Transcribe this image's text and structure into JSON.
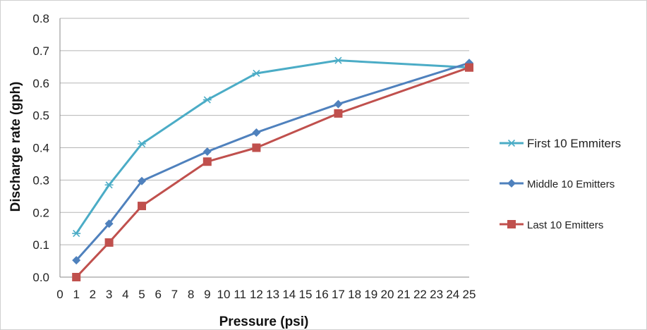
{
  "chart_data": {
    "type": "line",
    "title": "",
    "xlabel": "Pressure (psi)",
    "ylabel": "Discharge rate (gph)",
    "x_ticks": [
      "0",
      "1",
      "2",
      "3",
      "4",
      "5",
      "6",
      "7",
      "8",
      "9",
      "10",
      "11",
      "12",
      "13",
      "14",
      "15",
      "16",
      "17",
      "18",
      "19",
      "20",
      "21",
      "22",
      "23",
      "24",
      "25"
    ],
    "y_ticks": [
      "0.0",
      "0.1",
      "0.2",
      "0.3",
      "0.4",
      "0.5",
      "0.6",
      "0.7",
      "0.8"
    ],
    "xlim": [
      0,
      25
    ],
    "ylim": [
      0,
      0.8
    ],
    "grid": "horizontal",
    "legend_position": "right",
    "x": [
      1,
      3,
      5,
      9,
      12,
      17,
      25
    ],
    "series": [
      {
        "name": "First 10 Emmiters",
        "color": "#4BACC6",
        "marker": "star",
        "values": [
          0.135,
          0.285,
          0.412,
          0.548,
          0.63,
          0.67,
          0.648
        ]
      },
      {
        "name": "Middle 10 Emitters",
        "color": "#4F81BD",
        "marker": "diamond",
        "values": [
          0.052,
          0.165,
          0.297,
          0.388,
          0.447,
          0.535,
          0.662
        ]
      },
      {
        "name": "Last 10 Emitters",
        "color": "#C0504D",
        "marker": "square",
        "values": [
          0.0,
          0.107,
          0.22,
          0.357,
          0.4,
          0.506,
          0.648
        ]
      }
    ]
  }
}
